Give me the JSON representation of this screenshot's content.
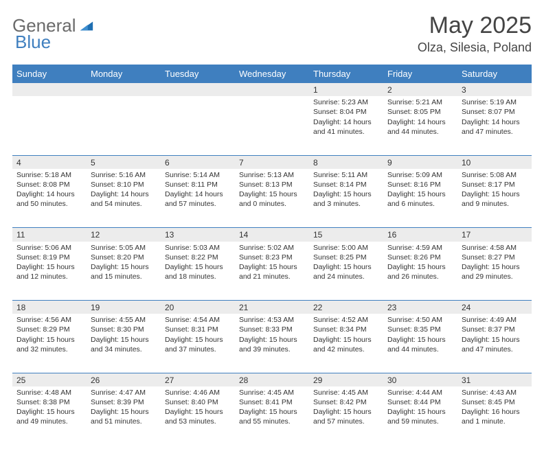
{
  "brand": {
    "general": "General",
    "blue": "Blue"
  },
  "title": {
    "month": "May 2025",
    "location": "Olza, Silesia, Poland"
  },
  "colors": {
    "header_bg": "#3f7fbf",
    "header_text": "#ffffff",
    "daynum_bg": "#ececec",
    "sep_line": "#3f7fbf",
    "body_text": "#333333",
    "logo_gray": "#6a6a6a",
    "logo_blue": "#3f7fbf"
  },
  "weekdays": [
    "Sunday",
    "Monday",
    "Tuesday",
    "Wednesday",
    "Thursday",
    "Friday",
    "Saturday"
  ],
  "weeks": [
    [
      {
        "n": "",
        "t": ""
      },
      {
        "n": "",
        "t": ""
      },
      {
        "n": "",
        "t": ""
      },
      {
        "n": "",
        "t": ""
      },
      {
        "n": "1",
        "t": "Sunrise: 5:23 AM\nSunset: 8:04 PM\nDaylight: 14 hours and 41 minutes."
      },
      {
        "n": "2",
        "t": "Sunrise: 5:21 AM\nSunset: 8:05 PM\nDaylight: 14 hours and 44 minutes."
      },
      {
        "n": "3",
        "t": "Sunrise: 5:19 AM\nSunset: 8:07 PM\nDaylight: 14 hours and 47 minutes."
      }
    ],
    [
      {
        "n": "4",
        "t": "Sunrise: 5:18 AM\nSunset: 8:08 PM\nDaylight: 14 hours and 50 minutes."
      },
      {
        "n": "5",
        "t": "Sunrise: 5:16 AM\nSunset: 8:10 PM\nDaylight: 14 hours and 54 minutes."
      },
      {
        "n": "6",
        "t": "Sunrise: 5:14 AM\nSunset: 8:11 PM\nDaylight: 14 hours and 57 minutes."
      },
      {
        "n": "7",
        "t": "Sunrise: 5:13 AM\nSunset: 8:13 PM\nDaylight: 15 hours and 0 minutes."
      },
      {
        "n": "8",
        "t": "Sunrise: 5:11 AM\nSunset: 8:14 PM\nDaylight: 15 hours and 3 minutes."
      },
      {
        "n": "9",
        "t": "Sunrise: 5:09 AM\nSunset: 8:16 PM\nDaylight: 15 hours and 6 minutes."
      },
      {
        "n": "10",
        "t": "Sunrise: 5:08 AM\nSunset: 8:17 PM\nDaylight: 15 hours and 9 minutes."
      }
    ],
    [
      {
        "n": "11",
        "t": "Sunrise: 5:06 AM\nSunset: 8:19 PM\nDaylight: 15 hours and 12 minutes."
      },
      {
        "n": "12",
        "t": "Sunrise: 5:05 AM\nSunset: 8:20 PM\nDaylight: 15 hours and 15 minutes."
      },
      {
        "n": "13",
        "t": "Sunrise: 5:03 AM\nSunset: 8:22 PM\nDaylight: 15 hours and 18 minutes."
      },
      {
        "n": "14",
        "t": "Sunrise: 5:02 AM\nSunset: 8:23 PM\nDaylight: 15 hours and 21 minutes."
      },
      {
        "n": "15",
        "t": "Sunrise: 5:00 AM\nSunset: 8:25 PM\nDaylight: 15 hours and 24 minutes."
      },
      {
        "n": "16",
        "t": "Sunrise: 4:59 AM\nSunset: 8:26 PM\nDaylight: 15 hours and 26 minutes."
      },
      {
        "n": "17",
        "t": "Sunrise: 4:58 AM\nSunset: 8:27 PM\nDaylight: 15 hours and 29 minutes."
      }
    ],
    [
      {
        "n": "18",
        "t": "Sunrise: 4:56 AM\nSunset: 8:29 PM\nDaylight: 15 hours and 32 minutes."
      },
      {
        "n": "19",
        "t": "Sunrise: 4:55 AM\nSunset: 8:30 PM\nDaylight: 15 hours and 34 minutes."
      },
      {
        "n": "20",
        "t": "Sunrise: 4:54 AM\nSunset: 8:31 PM\nDaylight: 15 hours and 37 minutes."
      },
      {
        "n": "21",
        "t": "Sunrise: 4:53 AM\nSunset: 8:33 PM\nDaylight: 15 hours and 39 minutes."
      },
      {
        "n": "22",
        "t": "Sunrise: 4:52 AM\nSunset: 8:34 PM\nDaylight: 15 hours and 42 minutes."
      },
      {
        "n": "23",
        "t": "Sunrise: 4:50 AM\nSunset: 8:35 PM\nDaylight: 15 hours and 44 minutes."
      },
      {
        "n": "24",
        "t": "Sunrise: 4:49 AM\nSunset: 8:37 PM\nDaylight: 15 hours and 47 minutes."
      }
    ],
    [
      {
        "n": "25",
        "t": "Sunrise: 4:48 AM\nSunset: 8:38 PM\nDaylight: 15 hours and 49 minutes."
      },
      {
        "n": "26",
        "t": "Sunrise: 4:47 AM\nSunset: 8:39 PM\nDaylight: 15 hours and 51 minutes."
      },
      {
        "n": "27",
        "t": "Sunrise: 4:46 AM\nSunset: 8:40 PM\nDaylight: 15 hours and 53 minutes."
      },
      {
        "n": "28",
        "t": "Sunrise: 4:45 AM\nSunset: 8:41 PM\nDaylight: 15 hours and 55 minutes."
      },
      {
        "n": "29",
        "t": "Sunrise: 4:45 AM\nSunset: 8:42 PM\nDaylight: 15 hours and 57 minutes."
      },
      {
        "n": "30",
        "t": "Sunrise: 4:44 AM\nSunset: 8:44 PM\nDaylight: 15 hours and 59 minutes."
      },
      {
        "n": "31",
        "t": "Sunrise: 4:43 AM\nSunset: 8:45 PM\nDaylight: 16 hours and 1 minute."
      }
    ]
  ]
}
